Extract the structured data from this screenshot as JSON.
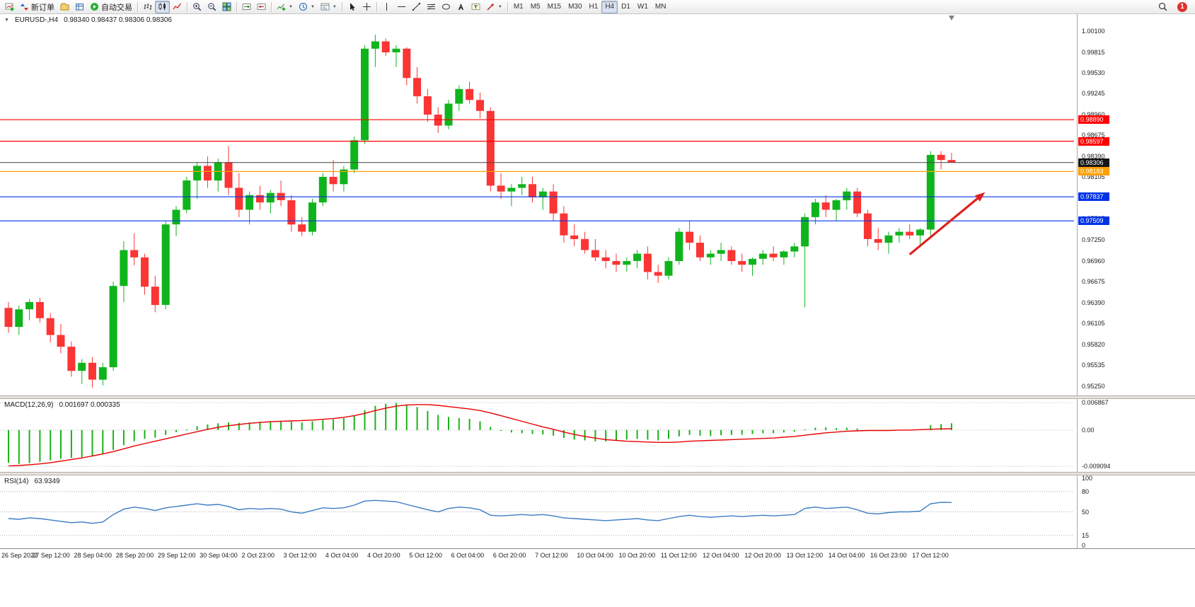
{
  "toolbar": {
    "groups": [
      {
        "items": [
          {
            "name": "new-chart-button",
            "icon": "chart-plus-icon"
          },
          {
            "name": "new-order-button",
            "icon": "order-icon",
            "label": "新订单"
          },
          {
            "name": "profiles-button",
            "icon": "profiles-icon"
          },
          {
            "name": "data-window-button",
            "icon": "data-window-icon"
          },
          {
            "name": "autotrading-button",
            "icon": "play-icon",
            "label": "自动交易"
          }
        ]
      },
      {
        "items": [
          {
            "name": "bar-chart-button",
            "icon": "bars-icon"
          },
          {
            "name": "candle-chart-button",
            "icon": "candles-icon",
            "active": true
          },
          {
            "name": "line-chart-button",
            "icon": "line-icon"
          }
        ]
      },
      {
        "items": [
          {
            "name": "zoom-in-button",
            "icon": "zoom-in-icon"
          },
          {
            "name": "zoom-out-button",
            "icon": "zoom-out-icon"
          },
          {
            "name": "tile-windows-button",
            "icon": "tile-icon"
          }
        ]
      },
      {
        "items": [
          {
            "name": "auto-scroll-button",
            "icon": "auto-scroll-icon"
          },
          {
            "name": "chart-shift-button",
            "icon": "chart-shift-icon"
          }
        ]
      },
      {
        "items": [
          {
            "name": "indicators-button",
            "icon": "indicators-icon",
            "caret": true
          },
          {
            "name": "periods-button",
            "icon": "clock-icon",
            "caret": true
          },
          {
            "name": "templates-button",
            "icon": "templates-icon",
            "caret": true
          }
        ]
      },
      {
        "items": [
          {
            "name": "cursor-button",
            "icon": "cursor-icon"
          },
          {
            "name": "crosshair-button",
            "icon": "crosshair-icon"
          }
        ]
      },
      {
        "items": [
          {
            "name": "vertical-line-button",
            "icon": "vertical-line-icon"
          },
          {
            "name": "horizontal-line-button",
            "icon": "horizontal-line-icon"
          },
          {
            "name": "trendline-button",
            "icon": "trendline-icon"
          },
          {
            "name": "fibonacci-button",
            "icon": "fibonacci-icon"
          },
          {
            "name": "shapes-button",
            "icon": "shapes-icon"
          },
          {
            "name": "text-button",
            "icon": "text-icon"
          },
          {
            "name": "text-label-button",
            "icon": "text-label-icon"
          },
          {
            "name": "arrows-button",
            "icon": "arrow-icon",
            "caret": true
          }
        ]
      }
    ],
    "timeframes": {
      "items": [
        "M1",
        "M5",
        "M15",
        "M30",
        "H1",
        "H4",
        "D1",
        "W1",
        "MN"
      ],
      "active": "H4"
    },
    "right": {
      "badge": "1"
    }
  },
  "chart_data": [
    {
      "type": "candlestick",
      "title": "EURUSD-,H4",
      "ohlc_display": "0.98340 0.98437 0.98306 0.98306",
      "colors": {
        "bull": "#0FB41C",
        "bear": "#FB3434"
      },
      "y_axis": {
        "range": {
          "max": 1.00332,
          "min": 0.95124
        },
        "tick_labels": [
          "1.00100",
          "0.99815",
          "0.99530",
          "0.99245",
          "0.98960",
          "0.98675",
          "0.98390",
          "0.98105",
          "0.97820",
          "0.97535",
          "0.97250",
          "0.96960",
          "0.96675",
          "0.96390",
          "0.96105",
          "0.95820",
          "0.95535",
          "0.95250"
        ]
      },
      "x_axis": {
        "label_every_bars": 4,
        "labels": [
          "26 Sep 2022",
          "27 Sep 12:00",
          "28 Sep 04:00",
          "28 Sep 20:00",
          "29 Sep 12:00",
          "30 Sep 04:00",
          "2 Oct 23:00",
          "3 Oct 12:00",
          "4 Oct 04:00",
          "4 Oct 20:00",
          "5 Oct 12:00",
          "6 Oct 04:00",
          "6 Oct 20:00",
          "7 Oct 12:00",
          "10 Oct 04:00",
          "10 Oct 20:00",
          "11 Oct 12:00",
          "12 Oct 04:00",
          "12 Oct 20:00",
          "13 Oct 12:00",
          "14 Oct 04:00",
          "16 Oct 23:00",
          "17 Oct 12:00"
        ]
      },
      "levels": [
        {
          "price": 0.9889,
          "label": "0.98890",
          "color": "#FF0000"
        },
        {
          "price": 0.98597,
          "label": "0.98597",
          "color": "#FF0000"
        },
        {
          "price": 0.98183,
          "label": "0.98183",
          "color": "#FFA000"
        },
        {
          "price": 0.97837,
          "label": "0.97837",
          "color": "#0033E6"
        },
        {
          "price": 0.97509,
          "label": "0.97509",
          "color": "#0033E6"
        }
      ],
      "current_price": {
        "price": 0.98306,
        "label": "0.98306",
        "color": "#444444",
        "badge_bg": "#151515"
      },
      "annotation_arrow": {
        "from": {
          "bar": 86,
          "price": 0.9705
        },
        "to": {
          "bar": 93.2,
          "price": 0.979
        },
        "color": "#E02020"
      },
      "shift_marker_bar": 90,
      "candles": [
        [
          0.9632,
          0.964,
          0.9598,
          0.9606
        ],
        [
          0.9606,
          0.9635,
          0.9595,
          0.963
        ],
        [
          0.963,
          0.9644,
          0.9615,
          0.964
        ],
        [
          0.964,
          0.9646,
          0.9612,
          0.9618
        ],
        [
          0.9618,
          0.9625,
          0.9585,
          0.9595
        ],
        [
          0.9595,
          0.961,
          0.957,
          0.9579
        ],
        [
          0.9579,
          0.9586,
          0.9538,
          0.9546
        ],
        [
          0.9546,
          0.9562,
          0.9528,
          0.9557
        ],
        [
          0.9557,
          0.9565,
          0.9523,
          0.9534
        ],
        [
          0.9534,
          0.9557,
          0.9526,
          0.9551
        ],
        [
          0.9551,
          0.9668,
          0.9546,
          0.9662
        ],
        [
          0.9662,
          0.9723,
          0.964,
          0.9711
        ],
        [
          0.9711,
          0.9734,
          0.969,
          0.9701
        ],
        [
          0.9701,
          0.9706,
          0.965,
          0.9661
        ],
        [
          0.9661,
          0.9676,
          0.9626,
          0.9636
        ],
        [
          0.9636,
          0.9751,
          0.963,
          0.9746
        ],
        [
          0.9746,
          0.9771,
          0.973,
          0.9766
        ],
        [
          0.9766,
          0.9811,
          0.9761,
          0.9806
        ],
        [
          0.9806,
          0.9831,
          0.9781,
          0.9826
        ],
        [
          0.9826,
          0.9839,
          0.9796,
          0.9806
        ],
        [
          0.9806,
          0.9836,
          0.9791,
          0.9831
        ],
        [
          0.9831,
          0.9853,
          0.9786,
          0.9796
        ],
        [
          0.9796,
          0.9816,
          0.9756,
          0.9766
        ],
        [
          0.9766,
          0.9791,
          0.9746,
          0.9786
        ],
        [
          0.9786,
          0.9799,
          0.9766,
          0.9776
        ],
        [
          0.9776,
          0.9793,
          0.9761,
          0.9789
        ],
        [
          0.9789,
          0.9806,
          0.9771,
          0.9779
        ],
        [
          0.9779,
          0.9786,
          0.9736,
          0.9746
        ],
        [
          0.9746,
          0.9756,
          0.973,
          0.9736
        ],
        [
          0.9736,
          0.9781,
          0.9731,
          0.9776
        ],
        [
          0.9776,
          0.9816,
          0.9771,
          0.9811
        ],
        [
          0.9811,
          0.9834,
          0.9791,
          0.9801
        ],
        [
          0.9801,
          0.9826,
          0.9791,
          0.9821
        ],
        [
          0.9821,
          0.9866,
          0.9816,
          0.9861
        ],
        [
          0.9861,
          0.9991,
          0.9856,
          0.9986
        ],
        [
          0.9986,
          1.0005,
          0.9961,
          0.9996
        ],
        [
          0.9996,
          1.0,
          0.9976,
          0.9981
        ],
        [
          0.9981,
          0.9991,
          0.9961,
          0.9986
        ],
        [
          0.9986,
          0.9988,
          0.9936,
          0.9946
        ],
        [
          0.9946,
          0.9961,
          0.9911,
          0.9921
        ],
        [
          0.9921,
          0.9931,
          0.9886,
          0.9896
        ],
        [
          0.9896,
          0.9906,
          0.9871,
          0.9881
        ],
        [
          0.9881,
          0.9916,
          0.9876,
          0.9911
        ],
        [
          0.9911,
          0.9936,
          0.9901,
          0.9931
        ],
        [
          0.9931,
          0.9941,
          0.9911,
          0.9916
        ],
        [
          0.9916,
          0.9926,
          0.9891,
          0.9901
        ],
        [
          0.9901,
          0.9906,
          0.9791,
          0.9799
        ],
        [
          0.9799,
          0.9816,
          0.9781,
          0.9791
        ],
        [
          0.9791,
          0.9801,
          0.9771,
          0.9796
        ],
        [
          0.9796,
          0.9811,
          0.9786,
          0.9801
        ],
        [
          0.9801,
          0.9811,
          0.9776,
          0.9783
        ],
        [
          0.9783,
          0.9796,
          0.9766,
          0.9791
        ],
        [
          0.9791,
          0.9801,
          0.9751,
          0.9761
        ],
        [
          0.9761,
          0.9771,
          0.9721,
          0.9731
        ],
        [
          0.9731,
          0.9746,
          0.9716,
          0.9726
        ],
        [
          0.9726,
          0.9736,
          0.9706,
          0.9711
        ],
        [
          0.9711,
          0.9726,
          0.9696,
          0.9701
        ],
        [
          0.9701,
          0.9711,
          0.9686,
          0.9696
        ],
        [
          0.9696,
          0.9706,
          0.9681,
          0.9691
        ],
        [
          0.9691,
          0.9701,
          0.9681,
          0.9696
        ],
        [
          0.9696,
          0.9711,
          0.9686,
          0.9706
        ],
        [
          0.9706,
          0.9716,
          0.9671,
          0.9681
        ],
        [
          0.9681,
          0.9691,
          0.9666,
          0.9676
        ],
        [
          0.9676,
          0.9701,
          0.9671,
          0.9696
        ],
        [
          0.9696,
          0.9741,
          0.9691,
          0.9736
        ],
        [
          0.9736,
          0.9751,
          0.9711,
          0.9721
        ],
        [
          0.9721,
          0.9731,
          0.9696,
          0.9701
        ],
        [
          0.9701,
          0.9711,
          0.9691,
          0.9706
        ],
        [
          0.9706,
          0.9721,
          0.9696,
          0.9711
        ],
        [
          0.9711,
          0.9716,
          0.9691,
          0.9696
        ],
        [
          0.9696,
          0.9706,
          0.9681,
          0.9691
        ],
        [
          0.9691,
          0.9701,
          0.9676,
          0.9699
        ],
        [
          0.9699,
          0.9711,
          0.9691,
          0.9706
        ],
        [
          0.9706,
          0.9716,
          0.9696,
          0.9701
        ],
        [
          0.9701,
          0.9711,
          0.9691,
          0.9709
        ],
        [
          0.9709,
          0.9721,
          0.9701,
          0.9716
        ],
        [
          0.9716,
          0.9761,
          0.9633,
          0.9756
        ],
        [
          0.9756,
          0.9781,
          0.9746,
          0.9776
        ],
        [
          0.9776,
          0.9786,
          0.9756,
          0.9766
        ],
        [
          0.9766,
          0.9781,
          0.9751,
          0.9779
        ],
        [
          0.9779,
          0.9796,
          0.9766,
          0.9791
        ],
        [
          0.9791,
          0.9796,
          0.9756,
          0.9761
        ],
        [
          0.9761,
          0.9766,
          0.9716,
          0.9726
        ],
        [
          0.9726,
          0.9741,
          0.9711,
          0.9721
        ],
        [
          0.9721,
          0.9736,
          0.9706,
          0.9731
        ],
        [
          0.9731,
          0.9741,
          0.9721,
          0.9736
        ],
        [
          0.9736,
          0.9746,
          0.9726,
          0.9731
        ],
        [
          0.9731,
          0.9741,
          0.9716,
          0.9739
        ],
        [
          0.9739,
          0.9846,
          0.9731,
          0.9841
        ],
        [
          0.9841,
          0.9846,
          0.9821,
          0.9834
        ],
        [
          0.9834,
          0.98437,
          0.98306,
          0.98306
        ]
      ]
    },
    {
      "type": "macd",
      "label": "MACD(12,26,9)",
      "values_display": "0.001697 0.000335",
      "y_ticks": [
        "0.006867",
        "0.00",
        "-0.009094"
      ],
      "range": {
        "max": 0.0078,
        "min": -0.0105
      },
      "colors": {
        "histogram": "#19B219",
        "signal": "#E80000"
      },
      "histogram": [
        -0.0082,
        -0.0085,
        -0.0083,
        -0.008,
        -0.0076,
        -0.0072,
        -0.007,
        -0.0068,
        -0.0065,
        -0.006,
        -0.005,
        -0.0038,
        -0.0028,
        -0.0022,
        -0.0019,
        -0.0012,
        -0.0005,
        0.0002,
        0.001,
        0.0014,
        0.0017,
        0.0019,
        0.0018,
        0.0019,
        0.0021,
        0.0022,
        0.0023,
        0.0021,
        0.0019,
        0.0022,
        0.0025,
        0.0027,
        0.003,
        0.0036,
        0.005,
        0.0061,
        0.0066,
        0.0068,
        0.0064,
        0.0058,
        0.0048,
        0.0038,
        0.0033,
        0.003,
        0.0028,
        0.0022,
        0.0008,
        -0.0002,
        -0.0006,
        -0.0008,
        -0.001,
        -0.0011,
        -0.0014,
        -0.002,
        -0.0024,
        -0.0026,
        -0.0028,
        -0.0029,
        -0.0027,
        -0.0024,
        -0.0022,
        -0.0024,
        -0.0026,
        -0.0022,
        -0.0016,
        -0.0012,
        -0.0014,
        -0.0015,
        -0.0013,
        -0.0012,
        -0.0012,
        -0.001,
        -0.0008,
        -0.0008,
        -0.0006,
        -0.0004,
        0.0002,
        0.0006,
        0.0007,
        0.0005,
        0.0006,
        0.0004,
        0.0,
        -0.0002,
        -0.0002,
        0.0,
        0.0001,
        0.0002,
        0.0012,
        0.0015,
        0.0017
      ],
      "signal": [
        -0.009,
        -0.0089,
        -0.0087,
        -0.0085,
        -0.0082,
        -0.0078,
        -0.0074,
        -0.007,
        -0.0065,
        -0.006,
        -0.0054,
        -0.0047,
        -0.004,
        -0.0034,
        -0.0028,
        -0.0022,
        -0.0016,
        -0.001,
        -0.0004,
        0.0002,
        0.0007,
        0.0011,
        0.0014,
        0.0017,
        0.0019,
        0.0021,
        0.0022,
        0.0023,
        0.0024,
        0.0025,
        0.0027,
        0.0029,
        0.0032,
        0.0036,
        0.0042,
        0.0049,
        0.0055,
        0.006,
        0.0063,
        0.0064,
        0.0064,
        0.0062,
        0.0059,
        0.0056,
        0.0053,
        0.0049,
        0.0043,
        0.0036,
        0.0029,
        0.0022,
        0.0015,
        0.0008,
        0.0002,
        -0.0005,
        -0.0011,
        -0.0016,
        -0.002,
        -0.0024,
        -0.0026,
        -0.0028,
        -0.0029,
        -0.003,
        -0.0031,
        -0.0031,
        -0.003,
        -0.0028,
        -0.0027,
        -0.0026,
        -0.0025,
        -0.0024,
        -0.0023,
        -0.0022,
        -0.0021,
        -0.002,
        -0.0018,
        -0.0016,
        -0.0013,
        -0.001,
        -0.0007,
        -0.0005,
        -0.0003,
        -0.0002,
        -0.0001,
        -0.0001,
        -0.0001,
        0.0,
        0.0,
        0.0001,
        0.0002,
        0.0003,
        0.00034
      ]
    },
    {
      "type": "line",
      "label": "RSI(14)",
      "value_display": "63.9349",
      "y_ticks": [
        "100",
        "80",
        "50",
        "15",
        "0"
      ],
      "guide_levels": [
        80,
        50,
        15
      ],
      "range": {
        "max": 104,
        "min": -4
      },
      "color": "#3C7DC4",
      "values": [
        40,
        39,
        41,
        40,
        38,
        36,
        34,
        35,
        33,
        35,
        46,
        54,
        57,
        55,
        52,
        56,
        58,
        60,
        62,
        60,
        61,
        58,
        53,
        55,
        54,
        55,
        54,
        50,
        48,
        52,
        56,
        55,
        56,
        60,
        66,
        67,
        66,
        65,
        61,
        57,
        53,
        50,
        55,
        57,
        56,
        53,
        45,
        44,
        45,
        46,
        45,
        46,
        44,
        41,
        40,
        39,
        38,
        37,
        38,
        39,
        40,
        38,
        37,
        40,
        43,
        45,
        43,
        42,
        43,
        44,
        43,
        44,
        45,
        44,
        45,
        46,
        55,
        57,
        55,
        56,
        57,
        53,
        48,
        47,
        49,
        50,
        50,
        51,
        62,
        64,
        63.93
      ]
    }
  ]
}
